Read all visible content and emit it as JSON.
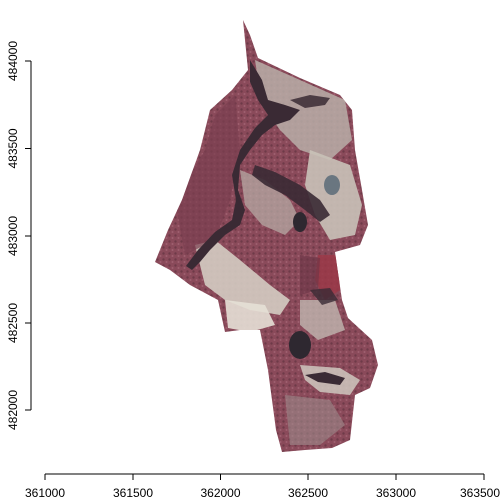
{
  "map": {
    "description_type": "false-color infrared aerial orthophoto raster plot",
    "x_ticks": [
      "361000",
      "361500",
      "362000",
      "362500",
      "363000",
      "363500"
    ],
    "y_ticks": [
      "482000",
      "482500",
      "483000",
      "483500",
      "484000"
    ],
    "x_range": [
      361000,
      363500
    ],
    "y_range": [
      481800,
      484200
    ],
    "colors": {
      "forest": "#8a4a5a",
      "forest_dark": "#6e3a48",
      "field": "#c9c2b8",
      "water": "#3a2a34",
      "bright_field": "#e6e0d6"
    }
  }
}
